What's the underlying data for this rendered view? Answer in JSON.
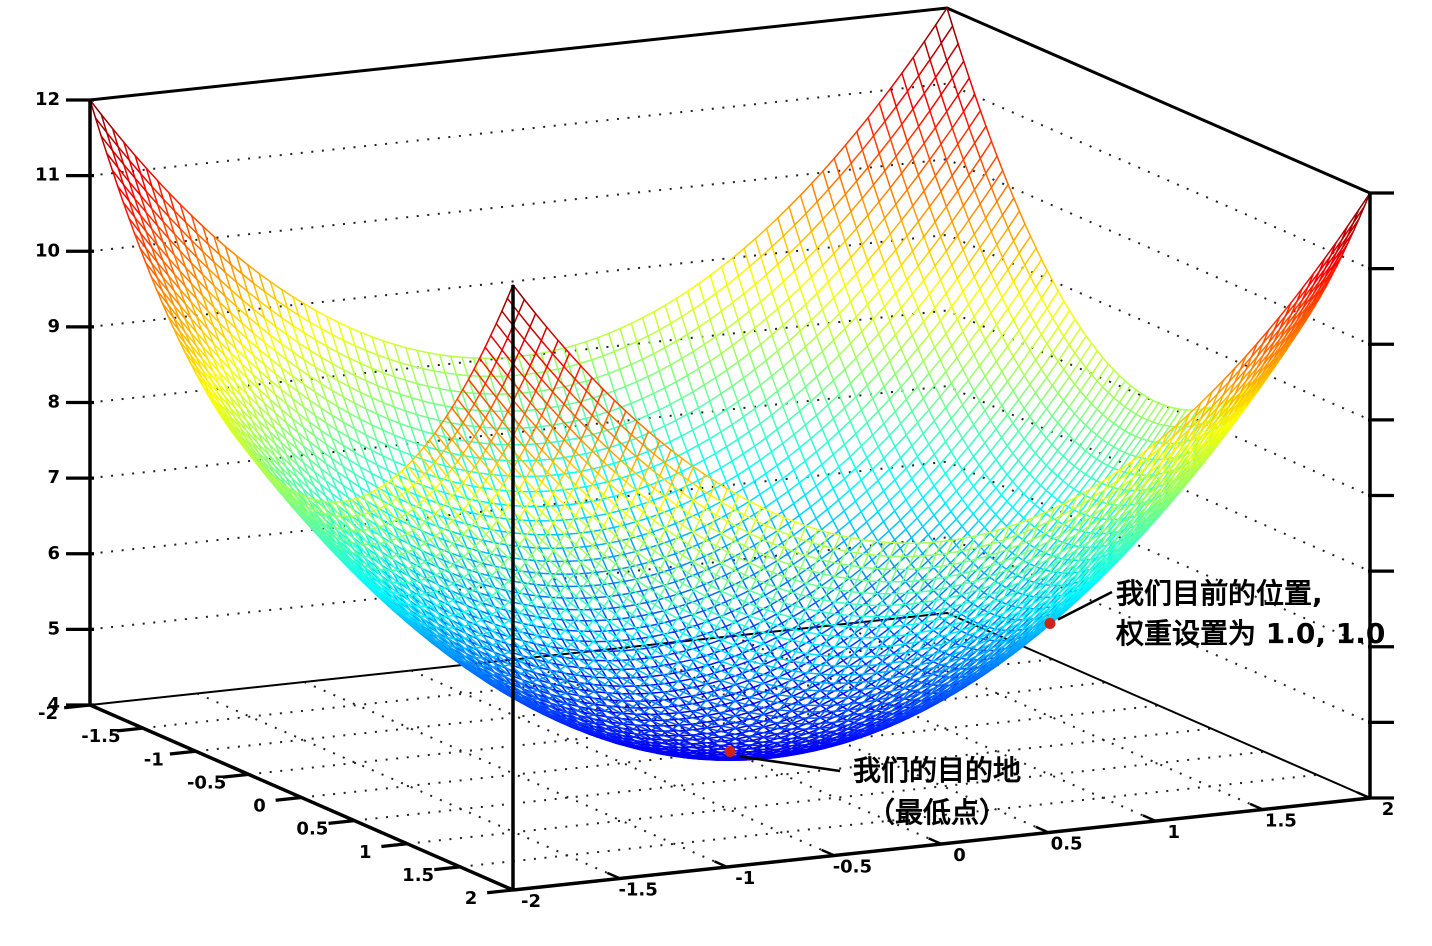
{
  "chart_data": {
    "type": "surface",
    "subtype": "wireframe-3d",
    "title": "",
    "colormap": "jet",
    "surface": {
      "formula": "z = 4 + x^2 + y^2",
      "offset": 4,
      "coeff_x2": 1,
      "coeff_y2": 1,
      "x_range": [
        -2,
        2
      ],
      "y_range": [
        -2,
        2
      ],
      "z_range": [
        4,
        12
      ],
      "mesh_cells": 76
    },
    "axes": {
      "x_bottom_left": {
        "tick_values": [
          -2,
          -1.5,
          -1,
          -0.5,
          0,
          0.5,
          1,
          1.5,
          2
        ],
        "tick_labels": [
          "-2",
          "-1.5",
          "-1",
          "-0.5",
          "0",
          "0.5",
          "1",
          "1.5",
          "2"
        ]
      },
      "y_bottom_right": {
        "tick_values": [
          -2,
          -1.5,
          -1,
          -0.5,
          0,
          0.5,
          1,
          1.5,
          2
        ],
        "tick_labels": [
          "-2",
          "-1.5",
          "-1",
          "-0.5",
          "0",
          "0.5",
          "1",
          "1.5",
          "2"
        ]
      },
      "z_left": {
        "tick_values": [
          4,
          5,
          6,
          7,
          8,
          9,
          10,
          11,
          12
        ],
        "tick_labels": [
          "4",
          "5",
          "6",
          "7",
          "8",
          "9",
          "10",
          "11",
          "12"
        ]
      },
      "z_right": {
        "tick_values": [
          4,
          5,
          6,
          7,
          8,
          9,
          10,
          11,
          12
        ],
        "tick_labels": []
      }
    },
    "gridlines": {
      "style": "dotted",
      "wall_z_levels": [
        5,
        6,
        7,
        8,
        9,
        10,
        11
      ],
      "floor_x_levels": [
        -1.5,
        -1,
        -0.5,
        0,
        0.5,
        1,
        1.5
      ],
      "floor_y_levels": [
        -1.5,
        -1,
        -0.5,
        0,
        0.5,
        1,
        1.5
      ]
    },
    "annotations": [
      {
        "name": "current-position",
        "text_lines": [
          "我们目前的位置,",
          "权重设置为 1.0, 1.0"
        ],
        "point": {
          "x": 1.0,
          "y": 1.0,
          "z": 6.0
        },
        "marker": "dot",
        "marker_color": "#cc2418"
      },
      {
        "name": "destination",
        "text_lines": [
          "我们的目的地",
          "（最低点）"
        ],
        "point": {
          "x": 0.0,
          "y": 0.0,
          "z": 4.0
        },
        "marker": "dot",
        "marker_color": "#cc2418"
      }
    ],
    "colors": {
      "axis": "#000000",
      "grid_dots": "#222222",
      "annotation_text": "#000000",
      "leader_line": "#000000"
    }
  }
}
